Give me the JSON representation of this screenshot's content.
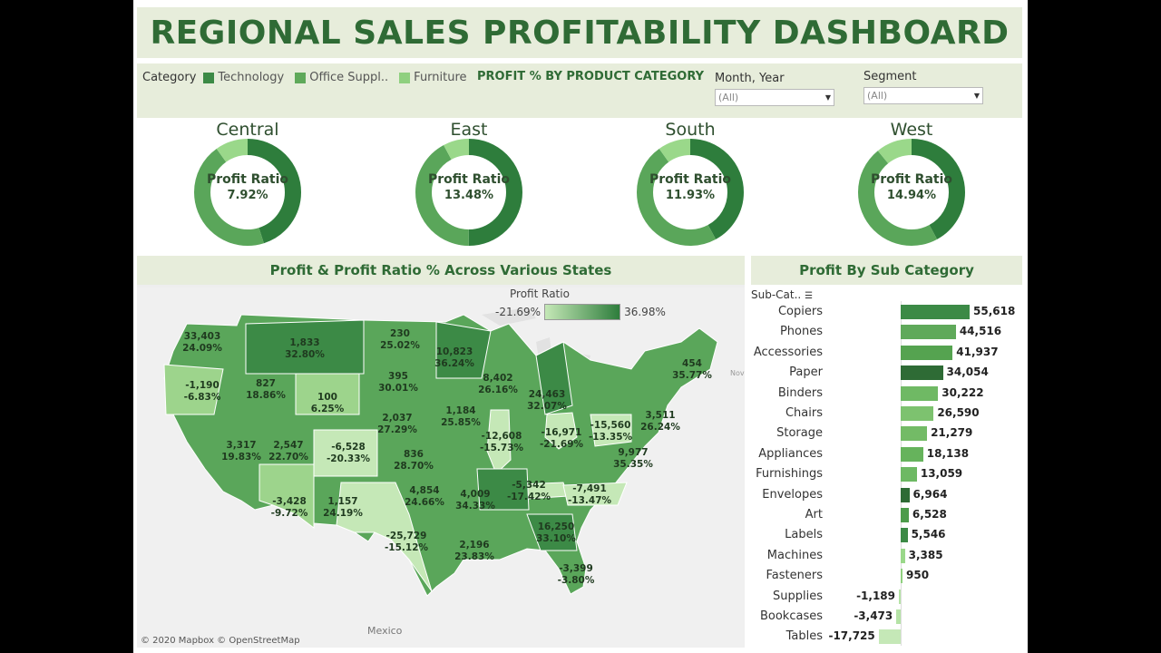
{
  "title": "REGIONAL SALES PROFITABILITY DASHBOARD",
  "filters": {
    "category_label": "Category",
    "legend": [
      {
        "label": "Technology",
        "color": "#3c8a46"
      },
      {
        "label": "Office Suppl..",
        "color": "#5fa95a"
      },
      {
        "label": "Furniture",
        "color": "#8fd07f"
      }
    ],
    "section_title": "PROFIT % BY PRODUCT CATEGORY",
    "month_year": {
      "label": "Month, Year",
      "value": "(All)"
    },
    "segment": {
      "label": "Segment",
      "value": "(All)"
    }
  },
  "donuts": [
    {
      "region": "Central",
      "label": "Profit Ratio",
      "value": "7.92%",
      "segments": [
        0.45,
        0.45,
        0.1
      ]
    },
    {
      "region": "East",
      "label": "Profit Ratio",
      "value": "13.48%",
      "segments": [
        0.5,
        0.42,
        0.08
      ]
    },
    {
      "region": "South",
      "label": "Profit Ratio",
      "value": "11.93%",
      "segments": [
        0.42,
        0.48,
        0.1
      ]
    },
    {
      "region": "West",
      "label": "Profit Ratio",
      "value": "14.94%",
      "segments": [
        0.42,
        0.47,
        0.11
      ]
    }
  ],
  "map": {
    "title": "Profit & Profit Ratio % Across Various States",
    "legend_title": "Profit Ratio",
    "legend_min": "-21.69%",
    "legend_max": "36.98%",
    "credit": "© 2020 Mapbox © OpenStreetMap",
    "mexico": "Mexico",
    "nova": "Nova",
    "labels": [
      {
        "p": "33,403",
        "r": "24.09%"
      },
      {
        "p": "-1,190",
        "r": "-6.83%"
      },
      {
        "p": "1,833",
        "r": "32.80%"
      },
      {
        "p": "827",
        "r": "18.86%"
      },
      {
        "p": "230",
        "r": "25.02%"
      },
      {
        "p": "395",
        "r": "30.01%"
      },
      {
        "p": "10,823",
        "r": "36.24%"
      },
      {
        "p": "100",
        "r": "6.25%"
      },
      {
        "p": "8,402",
        "r": "26.16%"
      },
      {
        "p": "3,317",
        "r": "19.83%"
      },
      {
        "p": "2,547",
        "r": "22.70%"
      },
      {
        "p": "2,037",
        "r": "27.29%"
      },
      {
        "p": "1,184",
        "r": "25.85%"
      },
      {
        "p": "24,463",
        "r": "32.07%"
      },
      {
        "p": "454",
        "r": "35.77%"
      },
      {
        "p": "3,511",
        "r": "26.24%"
      },
      {
        "p": "-6,528",
        "r": "-20.33%"
      },
      {
        "p": "836",
        "r": "28.70%"
      },
      {
        "p": "-12,608",
        "r": "-15.73%"
      },
      {
        "p": "-16,971",
        "r": "-21.69%"
      },
      {
        "p": "-15,560",
        "r": "-13.35%"
      },
      {
        "p": "9,977",
        "r": "35.35%"
      },
      {
        "p": "-3,428",
        "r": "-9.72%"
      },
      {
        "p": "1,157",
        "r": "24.19%"
      },
      {
        "p": "4,854",
        "r": "24.66%"
      },
      {
        "p": "-5,342",
        "r": "-17.42%"
      },
      {
        "p": "-7,491",
        "r": "-13.47%"
      },
      {
        "p": "4,009",
        "r": "34.33%"
      },
      {
        "p": "-25,729",
        "r": "-15.12%"
      },
      {
        "p": "16,250",
        "r": "33.10%"
      },
      {
        "p": "2,196",
        "r": "23.83%"
      },
      {
        "p": "-3,399",
        "r": "-3.80%"
      }
    ]
  },
  "subcategory": {
    "title": "Profit By Sub Category",
    "axis_label": "Sub-Cat..",
    "items": [
      {
        "name": "Copiers",
        "value": 55618,
        "label": "55,618",
        "color": "#3c8a46"
      },
      {
        "name": "Phones",
        "value": 44516,
        "label": "44,516",
        "color": "#5fa95a"
      },
      {
        "name": "Accessories",
        "value": 41937,
        "label": "41,937",
        "color": "#55a350"
      },
      {
        "name": "Paper",
        "value": 34054,
        "label": "34,054",
        "color": "#2e6b35"
      },
      {
        "name": "Binders",
        "value": 30222,
        "label": "30,222",
        "color": "#6fb964"
      },
      {
        "name": "Chairs",
        "value": 26590,
        "label": "26,590",
        "color": "#7dc26f"
      },
      {
        "name": "Storage",
        "value": 21279,
        "label": "21,279",
        "color": "#73bb66"
      },
      {
        "name": "Appliances",
        "value": 18138,
        "label": "18,138",
        "color": "#66b35c"
      },
      {
        "name": "Furnishings",
        "value": 13059,
        "label": "13,059",
        "color": "#6db963"
      },
      {
        "name": "Envelopes",
        "value": 6964,
        "label": "6,964",
        "color": "#2e6b35"
      },
      {
        "name": "Art",
        "value": 6528,
        "label": "6,528",
        "color": "#4d9c4b"
      },
      {
        "name": "Labels",
        "value": 5546,
        "label": "5,546",
        "color": "#3c8a46"
      },
      {
        "name": "Machines",
        "value": 3385,
        "label": "3,385",
        "color": "#9ad88a"
      },
      {
        "name": "Fasteners",
        "value": 950,
        "label": "950",
        "color": "#8fd07f"
      },
      {
        "name": "Supplies",
        "value": -1189,
        "label": "-1,189",
        "color": "#b5e3a6"
      },
      {
        "name": "Bookcases",
        "value": -3473,
        "label": "-3,473",
        "color": "#b5e3a6"
      },
      {
        "name": "Tables",
        "value": -17725,
        "label": "-17,725",
        "color": "#c5e8b7"
      }
    ]
  }
}
